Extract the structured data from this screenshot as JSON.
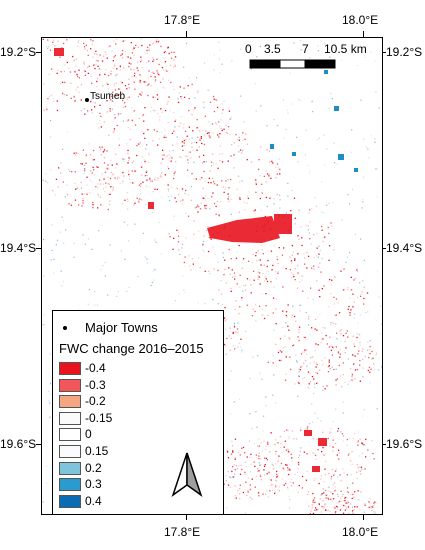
{
  "axes": {
    "top_labels": [
      "17.8°E",
      "18.0°E"
    ],
    "bottom_labels": [
      "17.8°E",
      "18.0°E"
    ],
    "left_labels": [
      "19.2°S",
      "19.4°S",
      "19.6°S"
    ],
    "right_labels": [
      "19.2°S",
      "19.4°S",
      "19.6°S"
    ]
  },
  "scale_bar": {
    "labels": [
      "0",
      "3.5",
      "7",
      "10.5 km"
    ]
  },
  "town": {
    "name": "Tsumeb"
  },
  "legend": {
    "towns_label": "Major Towns",
    "title": "FWC change 2016–2015",
    "entries": [
      {
        "label": "-0.4",
        "color": "#e8131f"
      },
      {
        "label": "-0.3",
        "color": "#f2565a"
      },
      {
        "label": "-0.2",
        "color": "#f4a582"
      },
      {
        "label": "-0.15",
        "color": "#fbfbfb"
      },
      {
        "label": "0",
        "color": "#ffffff"
      },
      {
        "label": "0.15",
        "color": "#fbfbfb"
      },
      {
        "label": "0.2",
        "color": "#7fc3dc"
      },
      {
        "label": "0.3",
        "color": "#2b9bcf"
      },
      {
        "label": "0.4",
        "color": "#0a6cb4"
      }
    ]
  },
  "colors": {
    "decrease": "#e8131f",
    "increase": "#1f8cc8"
  },
  "north_arrow": "north-arrow-icon"
}
